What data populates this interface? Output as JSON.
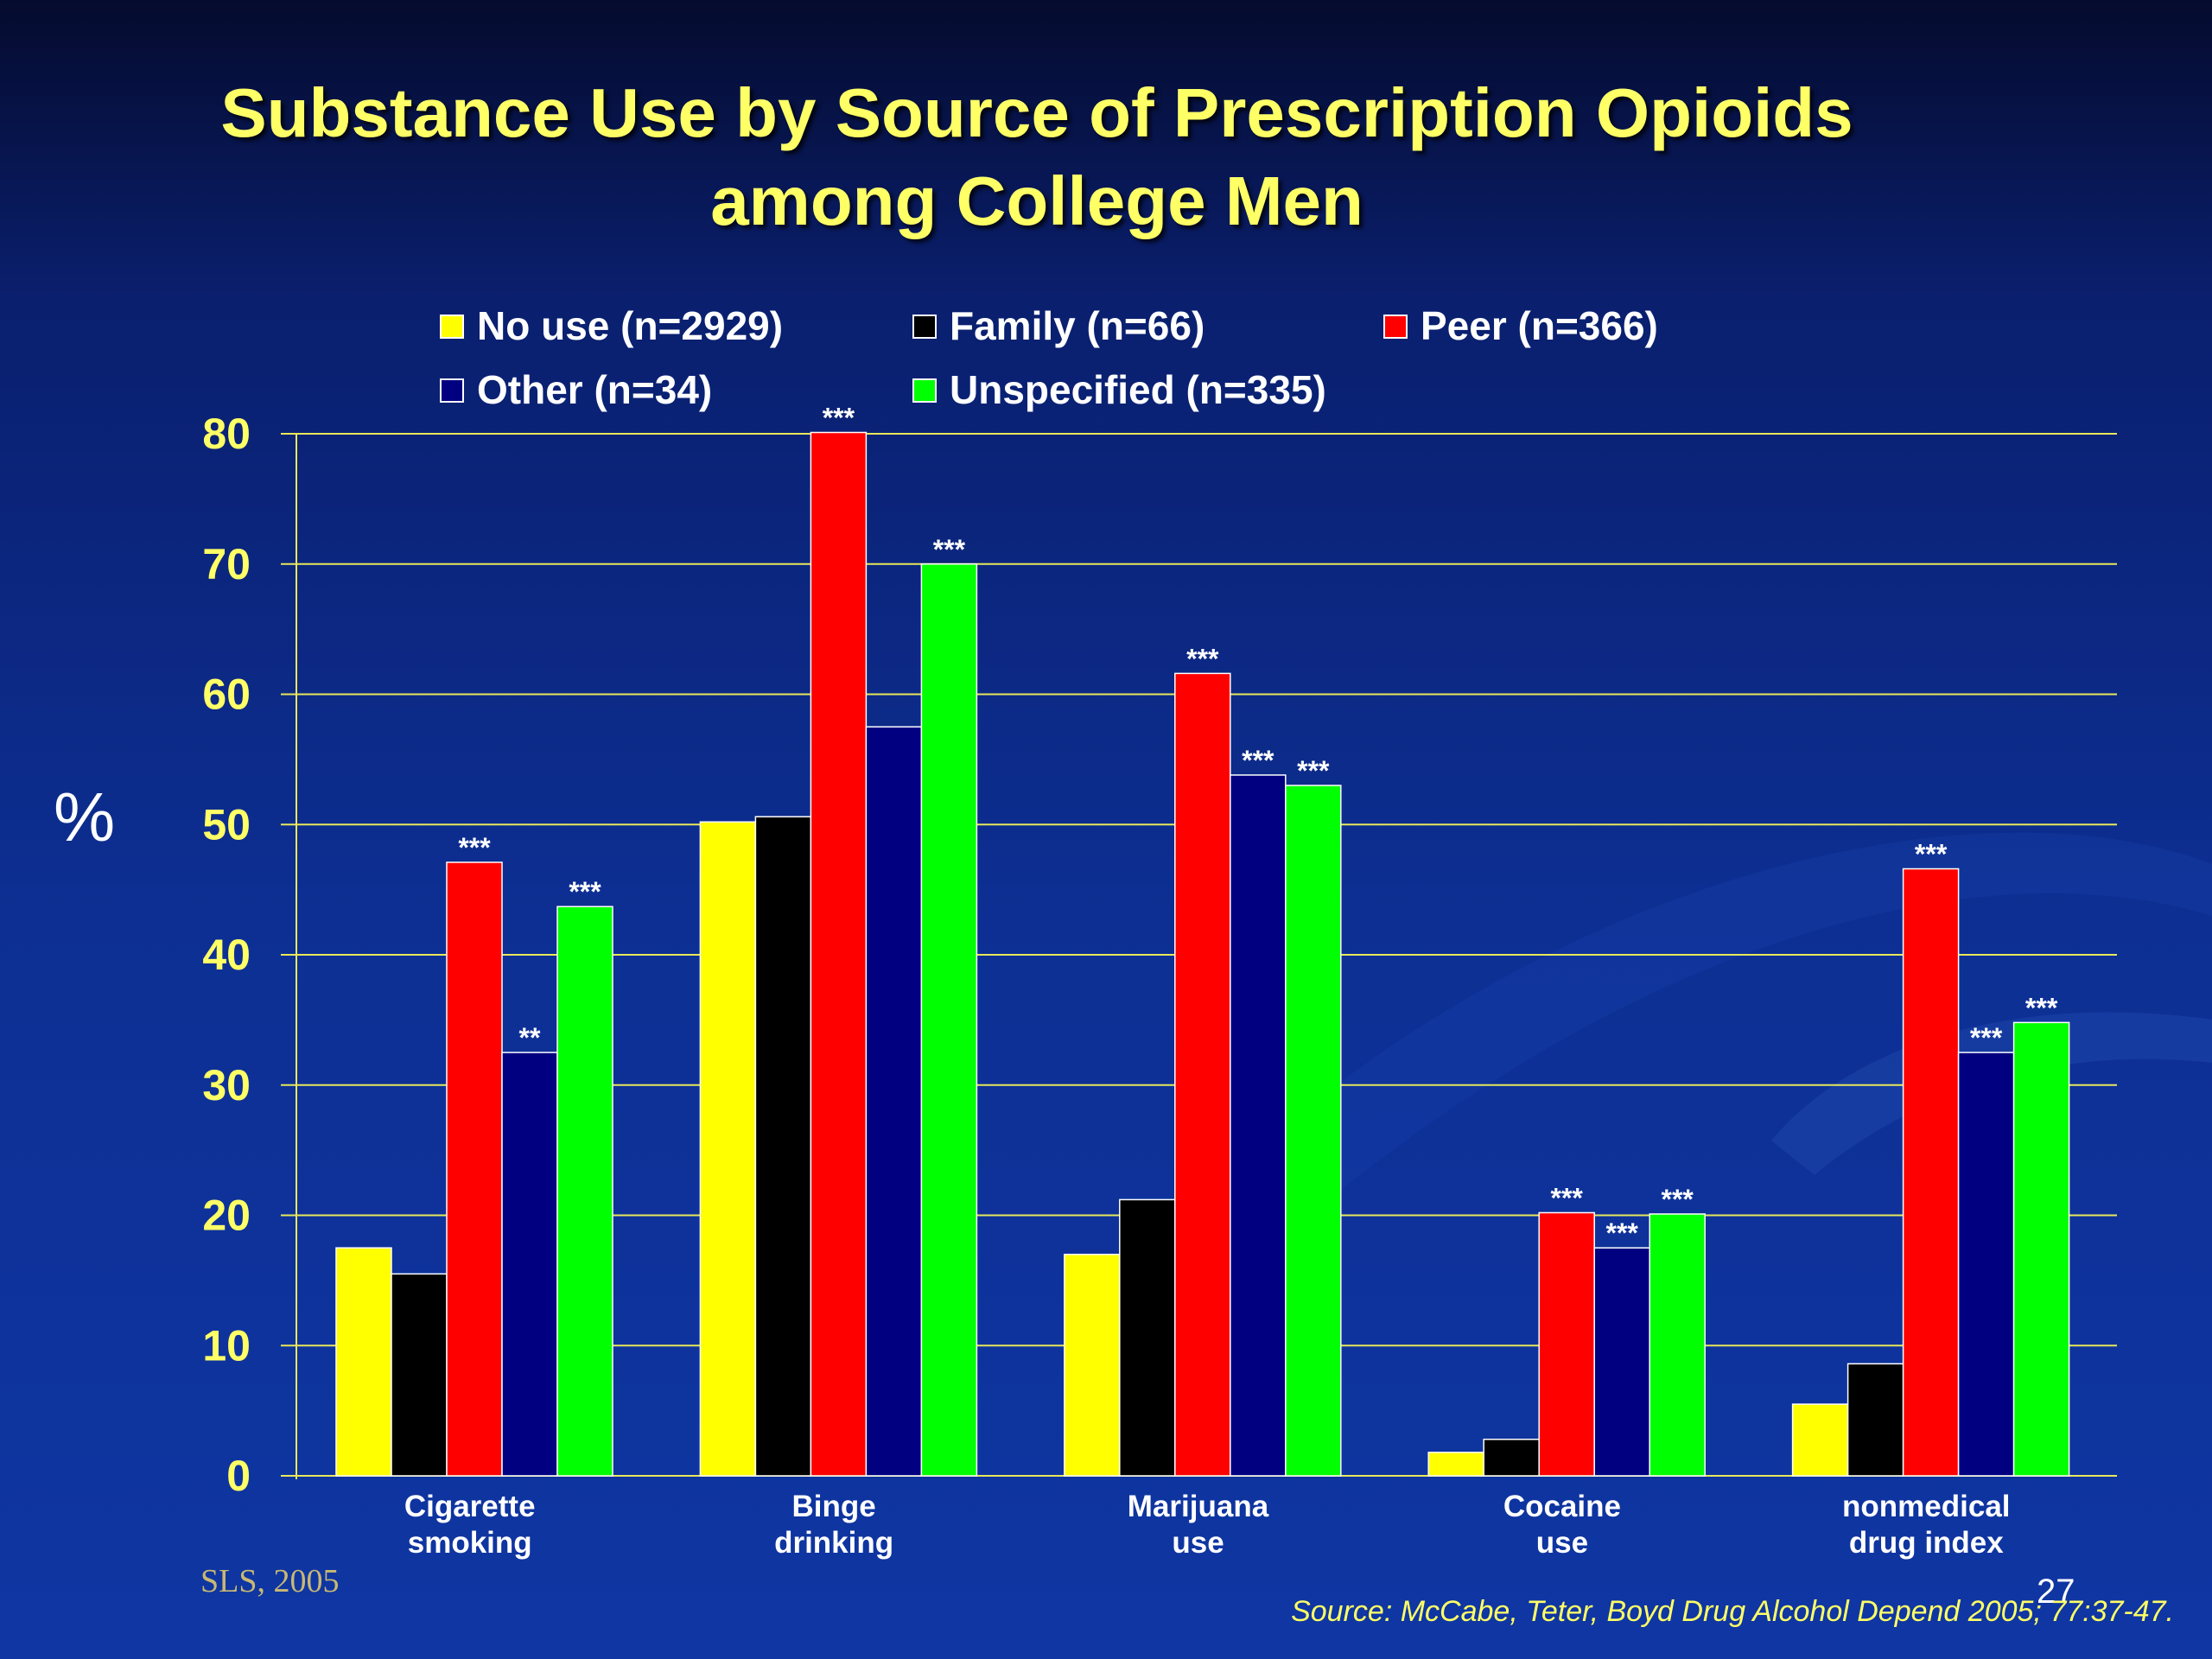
{
  "slide": {
    "title_line1": "Substance Use by Source of Prescription Opioids",
    "title_line2": "among College Men",
    "ylabel": "%",
    "footer_left": "SLS, 2005",
    "page_number": "27",
    "source": "Source: McCabe, Teter, Boyd Drug Alcohol Depend 2005; 77:37-47."
  },
  "chart_data": {
    "type": "bar",
    "categories": [
      [
        "Cigarette",
        "smoking"
      ],
      [
        "Binge",
        "drinking"
      ],
      [
        "Marijuana",
        "use"
      ],
      [
        "Cocaine",
        "use"
      ],
      [
        "nonmedical",
        "drug index"
      ]
    ],
    "ylim": [
      0,
      80
    ],
    "yticks": [
      0,
      10,
      20,
      30,
      40,
      50,
      60,
      70,
      80
    ],
    "grid": true,
    "legend_position": "top",
    "series": [
      {
        "name": "No use (n=2929)",
        "color": "#ffff00",
        "values": [
          17.5,
          50.2,
          17.0,
          1.8,
          5.5
        ],
        "sig": [
          "",
          "",
          "",
          "",
          ""
        ]
      },
      {
        "name": "Family (n=66)",
        "color": "#000000",
        "values": [
          15.5,
          50.6,
          21.2,
          2.8,
          8.6
        ],
        "sig": [
          "",
          "",
          "",
          "",
          ""
        ]
      },
      {
        "name": "Peer (n=366)",
        "color": "#ff0000",
        "values": [
          47.1,
          80.1,
          61.6,
          20.2,
          46.6
        ],
        "sig": [
          "***",
          "***",
          "***",
          "***",
          "***"
        ]
      },
      {
        "name": "Other (n=34)",
        "color": "#000080",
        "values": [
          32.5,
          57.5,
          53.8,
          17.5,
          32.5
        ],
        "sig": [
          "**",
          "",
          "***",
          "***",
          "***"
        ]
      },
      {
        "name": "Unspecified (n=335)",
        "color": "#00ff00",
        "values": [
          43.7,
          70.0,
          53.0,
          20.1,
          34.8
        ],
        "sig": [
          "***",
          "***",
          "***",
          "***",
          "***"
        ]
      }
    ]
  }
}
